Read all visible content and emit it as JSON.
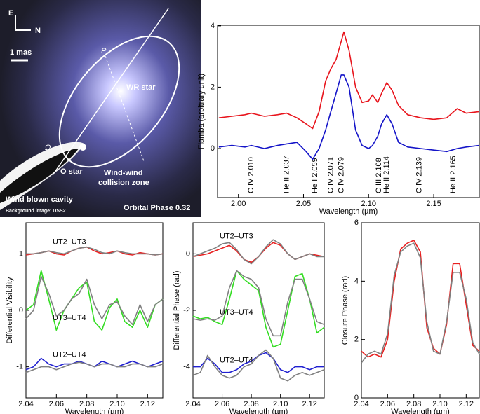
{
  "image_panel": {
    "compass_east": "E",
    "compass_north": "N",
    "scale": "1 mas",
    "periastron": "P",
    "wr_star": "WR star",
    "omega": "Ω",
    "o_star": "O star",
    "collision_zone": [
      "Wind-wind",
      "collision zone"
    ],
    "cavity": "Wind blown cavity",
    "credit": "Background image: DSS2",
    "phase": "Orbital Phase 0.32"
  },
  "chart_data": [
    {
      "type": "line",
      "xlabel": "Wavelength (µm)",
      "ylabel": "Flamba (arbitrary unit)",
      "x": [
        1.985,
        1.995,
        2.005,
        2.01,
        2.02,
        2.03,
        2.037,
        2.045,
        2.052,
        2.057,
        2.062,
        2.067,
        2.071,
        2.075,
        2.079,
        2.081,
        2.085,
        2.09,
        2.095,
        2.1,
        2.103,
        2.107,
        2.11,
        2.114,
        2.118,
        2.123,
        2.13,
        2.14,
        2.15,
        2.16,
        2.168,
        2.175,
        2.185
      ],
      "series": [
        {
          "color": "#e8141c",
          "values": [
            1.0,
            1.05,
            1.1,
            1.15,
            1.05,
            1.1,
            1.15,
            1.0,
            0.8,
            0.65,
            1.2,
            2.2,
            2.6,
            2.9,
            3.5,
            3.8,
            3.2,
            2.0,
            1.5,
            1.55,
            1.75,
            1.5,
            1.8,
            2.15,
            1.9,
            1.4,
            1.1,
            1.0,
            0.95,
            1.0,
            1.3,
            1.15,
            1.2
          ]
        },
        {
          "color": "#1414c8",
          "values": [
            0.05,
            0.1,
            0.05,
            0.1,
            0.0,
            0.1,
            0.15,
            0.2,
            -0.1,
            -0.35,
            0.0,
            0.6,
            1.2,
            1.8,
            2.4,
            2.4,
            2.0,
            0.6,
            0.1,
            0.0,
            0.1,
            0.4,
            0.8,
            1.1,
            0.8,
            0.2,
            0.05,
            0.0,
            -0.05,
            -0.1,
            0.0,
            0.05,
            0.1
          ]
        }
      ],
      "annotations": [
        {
          "text": "C IV 2.010",
          "x": 2.01
        },
        {
          "text": "He II 2.037",
          "x": 2.037
        },
        {
          "text": "He I 2.059",
          "x": 2.059
        },
        {
          "text": "C IV 2.071",
          "x": 2.071
        },
        {
          "text": "C IV 2.079",
          "x": 2.079
        },
        {
          "text": "C III 2.108",
          "x": 2.108
        },
        {
          "text": "He II 2.114",
          "x": 2.114
        },
        {
          "text": "C IV 2.139",
          "x": 2.139
        },
        {
          "text": "He II 2.165",
          "x": 2.165
        }
      ],
      "xlim": [
        1.984,
        2.185
      ],
      "xticks": [
        {
          "value": 2,
          "label": "2.00"
        },
        2.05,
        {
          "value": 2.1,
          "label": "2.10"
        },
        2.15
      ],
      "ylim": [
        -1.6,
        4.02
      ],
      "yticks": [
        0,
        2,
        4
      ]
    },
    {
      "type": "line",
      "xlabel": "Wavelength (µm)",
      "ylabel": "Differential Visibility",
      "x": [
        2.04,
        2.045,
        2.05,
        2.055,
        2.06,
        2.065,
        2.07,
        2.075,
        2.08,
        2.085,
        2.09,
        2.095,
        2.1,
        2.105,
        2.11,
        2.115,
        2.12,
        2.125,
        2.13
      ],
      "series": [
        {
          "name": "UT2–UT3",
          "color": "#e82020",
          "values": [
            0.98,
            1.0,
            1.02,
            1.05,
            1.0,
            0.98,
            1.05,
            1.1,
            1.12,
            1.05,
            1.0,
            1.02,
            1.05,
            1.0,
            0.98,
            1.02,
            1.0,
            0.98,
            1.0
          ]
        },
        {
          "color": "#808080",
          "values": [
            1.0,
            1.0,
            1.02,
            1.05,
            1.02,
            1.0,
            1.05,
            1.1,
            1.12,
            1.08,
            1.02,
            1.0,
            1.05,
            1.02,
            1.0,
            1.0,
            1.0,
            0.98,
            1.0
          ]
        },
        {
          "name": "UT3–UT4",
          "color": "#33dd22",
          "values": [
            0.0,
            0.1,
            0.7,
            0.2,
            -0.35,
            0.0,
            0.2,
            0.4,
            0.5,
            -0.2,
            -0.35,
            0.05,
            0.2,
            -0.2,
            -0.3,
            0.0,
            -0.3,
            0.1,
            0.2
          ]
        },
        {
          "color": "#808080",
          "values": [
            -0.15,
            0.0,
            0.6,
            0.3,
            -0.1,
            0.0,
            0.2,
            0.3,
            0.55,
            0.1,
            -0.15,
            0.1,
            0.15,
            -0.1,
            -0.25,
            0.1,
            -0.2,
            0.1,
            0.2
          ]
        },
        {
          "name": "UT2–UT4",
          "color": "#2020d0",
          "values": [
            -1.05,
            -1.0,
            -0.85,
            -0.95,
            -1.0,
            -0.95,
            -0.95,
            -0.9,
            -0.95,
            -1.0,
            -0.9,
            -0.95,
            -1.0,
            -0.95,
            -0.9,
            -0.95,
            -1.0,
            -0.95,
            -0.9
          ]
        },
        {
          "color": "#808080",
          "values": [
            -1.1,
            -1.05,
            -1.0,
            -1.0,
            -1.05,
            -1.0,
            -0.95,
            -0.92,
            -0.95,
            -1.0,
            -0.95,
            -0.95,
            -1.0,
            -1.0,
            -0.95,
            -0.95,
            -1.0,
            -1.0,
            -0.95
          ]
        }
      ],
      "xlim": [
        2.04,
        2.13
      ],
      "xticks": [
        2.04,
        2.06,
        2.08,
        {
          "value": 2.1,
          "label": "2.10"
        },
        2.12
      ],
      "ylim": [
        -1.55,
        1.55
      ],
      "yticks": [
        -1,
        0,
        1
      ]
    },
    {
      "type": "line",
      "xlabel": "Wavelength (µm)",
      "ylabel": "Differential Phase (rad)",
      "x": [
        2.04,
        2.045,
        2.05,
        2.055,
        2.06,
        2.065,
        2.07,
        2.075,
        2.08,
        2.085,
        2.09,
        2.095,
        2.1,
        2.105,
        2.11,
        2.115,
        2.12,
        2.125,
        2.13
      ],
      "series": [
        {
          "name": "UT2–UT3",
          "color": "#e82020",
          "values": [
            -0.1,
            -0.05,
            0.0,
            0.1,
            0.2,
            0.3,
            0.1,
            -0.2,
            -0.3,
            -0.1,
            0.2,
            0.4,
            0.3,
            0.0,
            -0.2,
            -0.1,
            0.0,
            -0.05,
            -0.1
          ]
        },
        {
          "color": "#808080",
          "values": [
            -0.1,
            0.0,
            0.1,
            0.2,
            0.35,
            0.4,
            0.15,
            -0.2,
            -0.35,
            -0.1,
            0.25,
            0.5,
            0.35,
            0.0,
            -0.2,
            -0.1,
            0.0,
            -0.1,
            -0.1
          ]
        },
        {
          "name": "UT3–UT4",
          "color": "#33dd22",
          "values": [
            -2.2,
            -2.3,
            -2.25,
            -2.4,
            -2.5,
            -1.6,
            -0.6,
            -0.9,
            -1.1,
            -1.3,
            -2.6,
            -3.3,
            -3.2,
            -2.0,
            -0.8,
            -0.7,
            -1.6,
            -2.8,
            -2.6
          ]
        },
        {
          "color": "#808080",
          "values": [
            -2.3,
            -2.35,
            -2.3,
            -2.35,
            -2.2,
            -1.2,
            -0.6,
            -0.8,
            -0.9,
            -1.2,
            -2.3,
            -2.9,
            -2.9,
            -1.7,
            -0.9,
            -0.9,
            -1.6,
            -2.4,
            -2.5
          ]
        },
        {
          "name": "UT2–UT4",
          "color": "#2020d0",
          "values": [
            -4.0,
            -4.0,
            -3.7,
            -3.9,
            -4.2,
            -4.2,
            -4.1,
            -3.9,
            -3.8,
            -3.6,
            -3.5,
            -3.7,
            -4.1,
            -4.2,
            -4.0,
            -4.0,
            -4.1,
            -4.0,
            -4.0
          ]
        },
        {
          "color": "#808080",
          "values": [
            -4.3,
            -4.2,
            -3.6,
            -4.0,
            -4.3,
            -4.4,
            -4.3,
            -4.0,
            -3.9,
            -3.6,
            -3.4,
            -3.7,
            -4.4,
            -4.5,
            -4.3,
            -4.2,
            -4.3,
            -4.2,
            -4.1
          ]
        }
      ],
      "xlim": [
        2.04,
        2.13
      ],
      "xticks": [
        2.04,
        2.06,
        2.08,
        {
          "value": 2.1,
          "label": "2.10"
        },
        2.12
      ],
      "ylim": [
        -5.1,
        1.1
      ],
      "yticks": [
        -4,
        -2,
        0
      ]
    },
    {
      "type": "line",
      "xlabel": "Wavelength (µm)",
      "ylabel": "Closure Phase (rad)",
      "x": [
        2.04,
        2.045,
        2.05,
        2.055,
        2.06,
        2.065,
        2.07,
        2.075,
        2.08,
        2.085,
        2.09,
        2.095,
        2.1,
        2.105,
        2.11,
        2.115,
        2.12,
        2.125,
        2.13
      ],
      "series": [
        {
          "color": "#e82020",
          "values": [
            1.6,
            1.4,
            1.5,
            1.4,
            2.0,
            4.0,
            5.1,
            5.3,
            5.4,
            5.0,
            2.4,
            1.7,
            1.5,
            2.5,
            4.6,
            4.6,
            3.2,
            1.8,
            1.6
          ]
        },
        {
          "color": "#808080",
          "values": [
            1.2,
            1.5,
            1.6,
            1.5,
            2.2,
            4.2,
            5.0,
            5.2,
            5.3,
            4.8,
            2.6,
            1.6,
            1.5,
            2.6,
            4.3,
            4.3,
            3.4,
            1.9,
            1.5
          ]
        }
      ],
      "xlim": [
        2.04,
        2.13
      ],
      "xticks": [
        2.04,
        2.06,
        2.08,
        {
          "value": 2.1,
          "label": "2.10"
        },
        2.12
      ],
      "ylim": [
        0,
        6
      ],
      "yticks": [
        0,
        2,
        4,
        6
      ]
    }
  ]
}
